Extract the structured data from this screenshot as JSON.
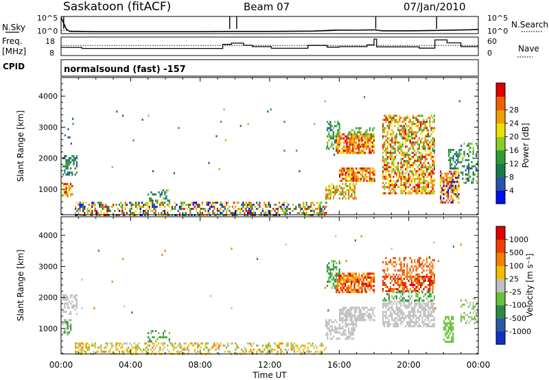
{
  "header": {
    "station": "Saskatoon (fitACF)",
    "beam": "Beam 07",
    "date": "07/Jan/2010"
  },
  "chart_data": [
    {
      "type": "line",
      "panel": "sky-noise",
      "left_label": "N.Sky",
      "right_label": "N.Search",
      "yticks_left": [
        "10^5",
        "10^0"
      ],
      "yticks_right": [
        "10^5",
        "10^0"
      ],
      "series": [
        {
          "name": "N.Sky",
          "style": "solid",
          "x": [
            0,
            0.3,
            0.5,
            2,
            5,
            8,
            10,
            12,
            14.5,
            15.5,
            16,
            17,
            18,
            18.5,
            20,
            21.5,
            22.5,
            23.5,
            24
          ],
          "y": [
            2.5,
            0.6,
            0.25,
            0.2,
            0.2,
            0.2,
            0.25,
            0.25,
            0.3,
            0.4,
            0.45,
            0.45,
            0.5,
            0.35,
            0.35,
            0.4,
            0.45,
            0.5,
            0.55
          ]
        },
        {
          "name": "N.Search",
          "style": "dotted",
          "x": [
            0,
            2,
            5,
            8,
            10,
            12,
            14.5,
            15.5,
            16,
            17,
            18,
            18.5,
            20,
            21.5,
            22.5,
            23.5,
            24
          ],
          "y": [
            0.4,
            0.2,
            0.22,
            0.22,
            0.25,
            0.25,
            0.3,
            0.5,
            0.5,
            0.45,
            0.5,
            0.35,
            0.35,
            0.45,
            0.5,
            0.55,
            0.6
          ]
        }
      ],
      "spikes_x": [
        0.15,
        9.7,
        10.1,
        18.1,
        21.6
      ]
    },
    {
      "type": "line",
      "panel": "frequency",
      "left_label": "Freq.",
      "left_unit": "[MHz]",
      "right_label": "Nave",
      "yticks_left": [
        "18",
        "8"
      ],
      "yticks_right": [
        "60",
        "0"
      ],
      "ylim": [
        8,
        18
      ],
      "series": [
        {
          "name": "Freq.",
          "style": "solid",
          "x": [
            0,
            1.2,
            1.2,
            9.3,
            9.3,
            9.8,
            9.8,
            10.5,
            10.5,
            11.0,
            11.0,
            12.1,
            12.1,
            14.2,
            14.2,
            15.3,
            15.3,
            16.0,
            16.0,
            17.6,
            17.6,
            18.0,
            18.0,
            18.15,
            18.15,
            20.6,
            20.6,
            21.5,
            21.5,
            22.2,
            22.2,
            23.0,
            23.0,
            24
          ],
          "y": [
            12.5,
            12.5,
            11.8,
            11.8,
            14.5,
            14.5,
            15.3,
            15.3,
            13.9,
            13.9,
            13.0,
            13.0,
            11.9,
            11.9,
            13.8,
            13.8,
            12.7,
            12.7,
            13.0,
            13.0,
            14.2,
            14.2,
            18,
            18,
            12.8,
            12.8,
            12.0,
            12.0,
            17.5,
            17.5,
            15.5,
            15.5,
            13.0,
            13.0
          ]
        },
        {
          "name": "Nave",
          "style": "dotted",
          "x": [
            0,
            24
          ],
          "y": [
            13.8,
            13.8
          ]
        }
      ]
    },
    {
      "type": "heatmap",
      "panel": "power",
      "cpid_label": "CPID",
      "cpid_text": "normalsound (fast) -157",
      "ylabel": "Slant Range [km]",
      "ylim": [
        180,
        4600
      ],
      "yticks": [
        "1000",
        "2000",
        "3000",
        "4000"
      ],
      "colorbar_label": "Power [dB]",
      "colorbar_ticks": [
        "4",
        "8",
        "12",
        "16",
        "20",
        "24",
        "28"
      ],
      "colorbar_colors": [
        "#0010f0",
        "#2a54a8",
        "#1a7a4a",
        "#2aa032",
        "#8ccc28",
        "#f0e000",
        "#f0a000",
        "#f06000",
        "#e00000"
      ],
      "blobs": [
        {
          "t0": 0.1,
          "t1": 0.9,
          "r0": 1500,
          "r1": 2100,
          "density": 0.55,
          "ci": [
            1,
            2,
            3
          ]
        },
        {
          "t0": 0.1,
          "t1": 0.7,
          "r0": 800,
          "r1": 1200,
          "density": 0.6,
          "ci": [
            5,
            6,
            7,
            8
          ]
        },
        {
          "t0": 0.2,
          "t1": 0.7,
          "r0": 2300,
          "r1": 3300,
          "density": 0.08,
          "ci": [
            1,
            2
          ]
        },
        {
          "t0": 0.8,
          "t1": 15.3,
          "r0": 200,
          "r1": 600,
          "density": 0.45,
          "ci": [
            0,
            1,
            2,
            3,
            4,
            5,
            6,
            7,
            8
          ]
        },
        {
          "t0": 5.0,
          "t1": 6.2,
          "r0": 600,
          "r1": 1000,
          "density": 0.35,
          "ci": [
            1,
            2,
            3,
            4
          ]
        },
        {
          "t0": 15.2,
          "t1": 17.0,
          "r0": 700,
          "r1": 1200,
          "density": 0.55,
          "ci": [
            3,
            4,
            5,
            6,
            7
          ]
        },
        {
          "t0": 15.3,
          "t1": 16.0,
          "r0": 2300,
          "r1": 3200,
          "density": 0.5,
          "ci": [
            1,
            2,
            3,
            4
          ]
        },
        {
          "t0": 15.8,
          "t1": 18.0,
          "r0": 2200,
          "r1": 2800,
          "density": 0.75,
          "ci": [
            5,
            6,
            7,
            8
          ]
        },
        {
          "t0": 16.0,
          "t1": 18.0,
          "r0": 1300,
          "r1": 1700,
          "density": 0.75,
          "ci": [
            5,
            6,
            7,
            8
          ]
        },
        {
          "t0": 16.5,
          "t1": 18.0,
          "r0": 2700,
          "r1": 3000,
          "density": 0.4,
          "ci": [
            3,
            4
          ]
        },
        {
          "t0": 18.5,
          "t1": 21.5,
          "r0": 1500,
          "r1": 3400,
          "density": 0.55,
          "ci": [
            3,
            4,
            5,
            6,
            7,
            8
          ]
        },
        {
          "t0": 18.5,
          "t1": 21.5,
          "r0": 900,
          "r1": 1500,
          "density": 0.6,
          "ci": [
            4,
            5,
            6,
            7,
            8
          ]
        },
        {
          "t0": 21.8,
          "t1": 22.9,
          "r0": 600,
          "r1": 1600,
          "density": 0.75,
          "ci": [
            5,
            6,
            7,
            8,
            0
          ]
        },
        {
          "t0": 22.3,
          "t1": 22.9,
          "r0": 1700,
          "r1": 2300,
          "density": 0.4,
          "ci": [
            1,
            2,
            3
          ]
        },
        {
          "t0": 23.0,
          "t1": 24.0,
          "r0": 1200,
          "r1": 2500,
          "density": 0.35,
          "ci": [
            1,
            2,
            3,
            4
          ]
        },
        {
          "t0": 0.5,
          "t1": 24.0,
          "r0": 1500,
          "r1": 4000,
          "density": 0.003,
          "ci": [
            1,
            2,
            3,
            4
          ]
        }
      ]
    },
    {
      "type": "heatmap",
      "panel": "velocity",
      "ylabel": "Slant Range [km]",
      "ylim": [
        180,
        4600
      ],
      "yticks": [
        "1000",
        "2000",
        "3000",
        "4000"
      ],
      "colorbar_label": "Velocity [m s⁻¹]",
      "colorbar_ticks": [
        "1000",
        "500",
        "100",
        "25",
        "-25",
        "-100",
        "-500",
        "-1000"
      ],
      "colorbar_colors": [
        "#1030c8",
        "#2a5aa0",
        "#2a8a48",
        "#6ac03a",
        "#c0c0c0",
        "#f0c000",
        "#f08000",
        "#f04000",
        "#e00000"
      ],
      "blobs": [
        {
          "t0": 0.1,
          "t1": 0.9,
          "r0": 1500,
          "r1": 2100,
          "density": 0.55,
          "ci": [
            4
          ]
        },
        {
          "t0": 0.1,
          "t1": 0.6,
          "r0": 800,
          "r1": 1300,
          "density": 0.5,
          "ci": [
            2,
            3,
            4
          ]
        },
        {
          "t0": 0.8,
          "t1": 15.3,
          "r0": 200,
          "r1": 550,
          "density": 0.4,
          "ci": [
            4,
            5,
            5,
            6,
            3
          ]
        },
        {
          "t0": 5.0,
          "t1": 6.2,
          "r0": 600,
          "r1": 950,
          "density": 0.35,
          "ci": [
            2,
            3
          ]
        },
        {
          "t0": 15.2,
          "t1": 17.0,
          "r0": 700,
          "r1": 1300,
          "density": 0.5,
          "ci": [
            4
          ]
        },
        {
          "t0": 15.3,
          "t1": 16.0,
          "r0": 2300,
          "r1": 3200,
          "density": 0.4,
          "ci": [
            2,
            3
          ]
        },
        {
          "t0": 15.8,
          "t1": 18.0,
          "r0": 2200,
          "r1": 2800,
          "density": 0.75,
          "ci": [
            6,
            7,
            8,
            5
          ]
        },
        {
          "t0": 16.0,
          "t1": 18.0,
          "r0": 1300,
          "r1": 1700,
          "density": 0.7,
          "ci": [
            4
          ]
        },
        {
          "t0": 18.5,
          "t1": 21.5,
          "r0": 2200,
          "r1": 2700,
          "density": 0.6,
          "ci": [
            6,
            7,
            8
          ]
        },
        {
          "t0": 18.5,
          "t1": 21.5,
          "r0": 2700,
          "r1": 3300,
          "density": 0.35,
          "ci": [
            6,
            7
          ]
        },
        {
          "t0": 18.5,
          "t1": 21.5,
          "r0": 1100,
          "r1": 1900,
          "density": 0.6,
          "ci": [
            4
          ]
        },
        {
          "t0": 18.5,
          "t1": 21.5,
          "r0": 1900,
          "r1": 2200,
          "density": 0.35,
          "ci": [
            3,
            2
          ]
        },
        {
          "t0": 22.0,
          "t1": 22.6,
          "r0": 600,
          "r1": 1400,
          "density": 0.65,
          "ci": [
            3
          ]
        },
        {
          "t0": 23.0,
          "t1": 24.0,
          "r0": 1200,
          "r1": 2000,
          "density": 0.3,
          "ci": [
            3,
            4
          ]
        },
        {
          "t0": 0.5,
          "t1": 24.0,
          "r0": 1500,
          "r1": 4000,
          "density": 0.003,
          "ci": [
            2,
            4,
            6
          ]
        }
      ]
    }
  ],
  "xaxis": {
    "label": "Time UT",
    "ticks": [
      "00:00",
      "04:00",
      "08:00",
      "12:00",
      "16:00",
      "20:00",
      "00:00"
    ]
  }
}
